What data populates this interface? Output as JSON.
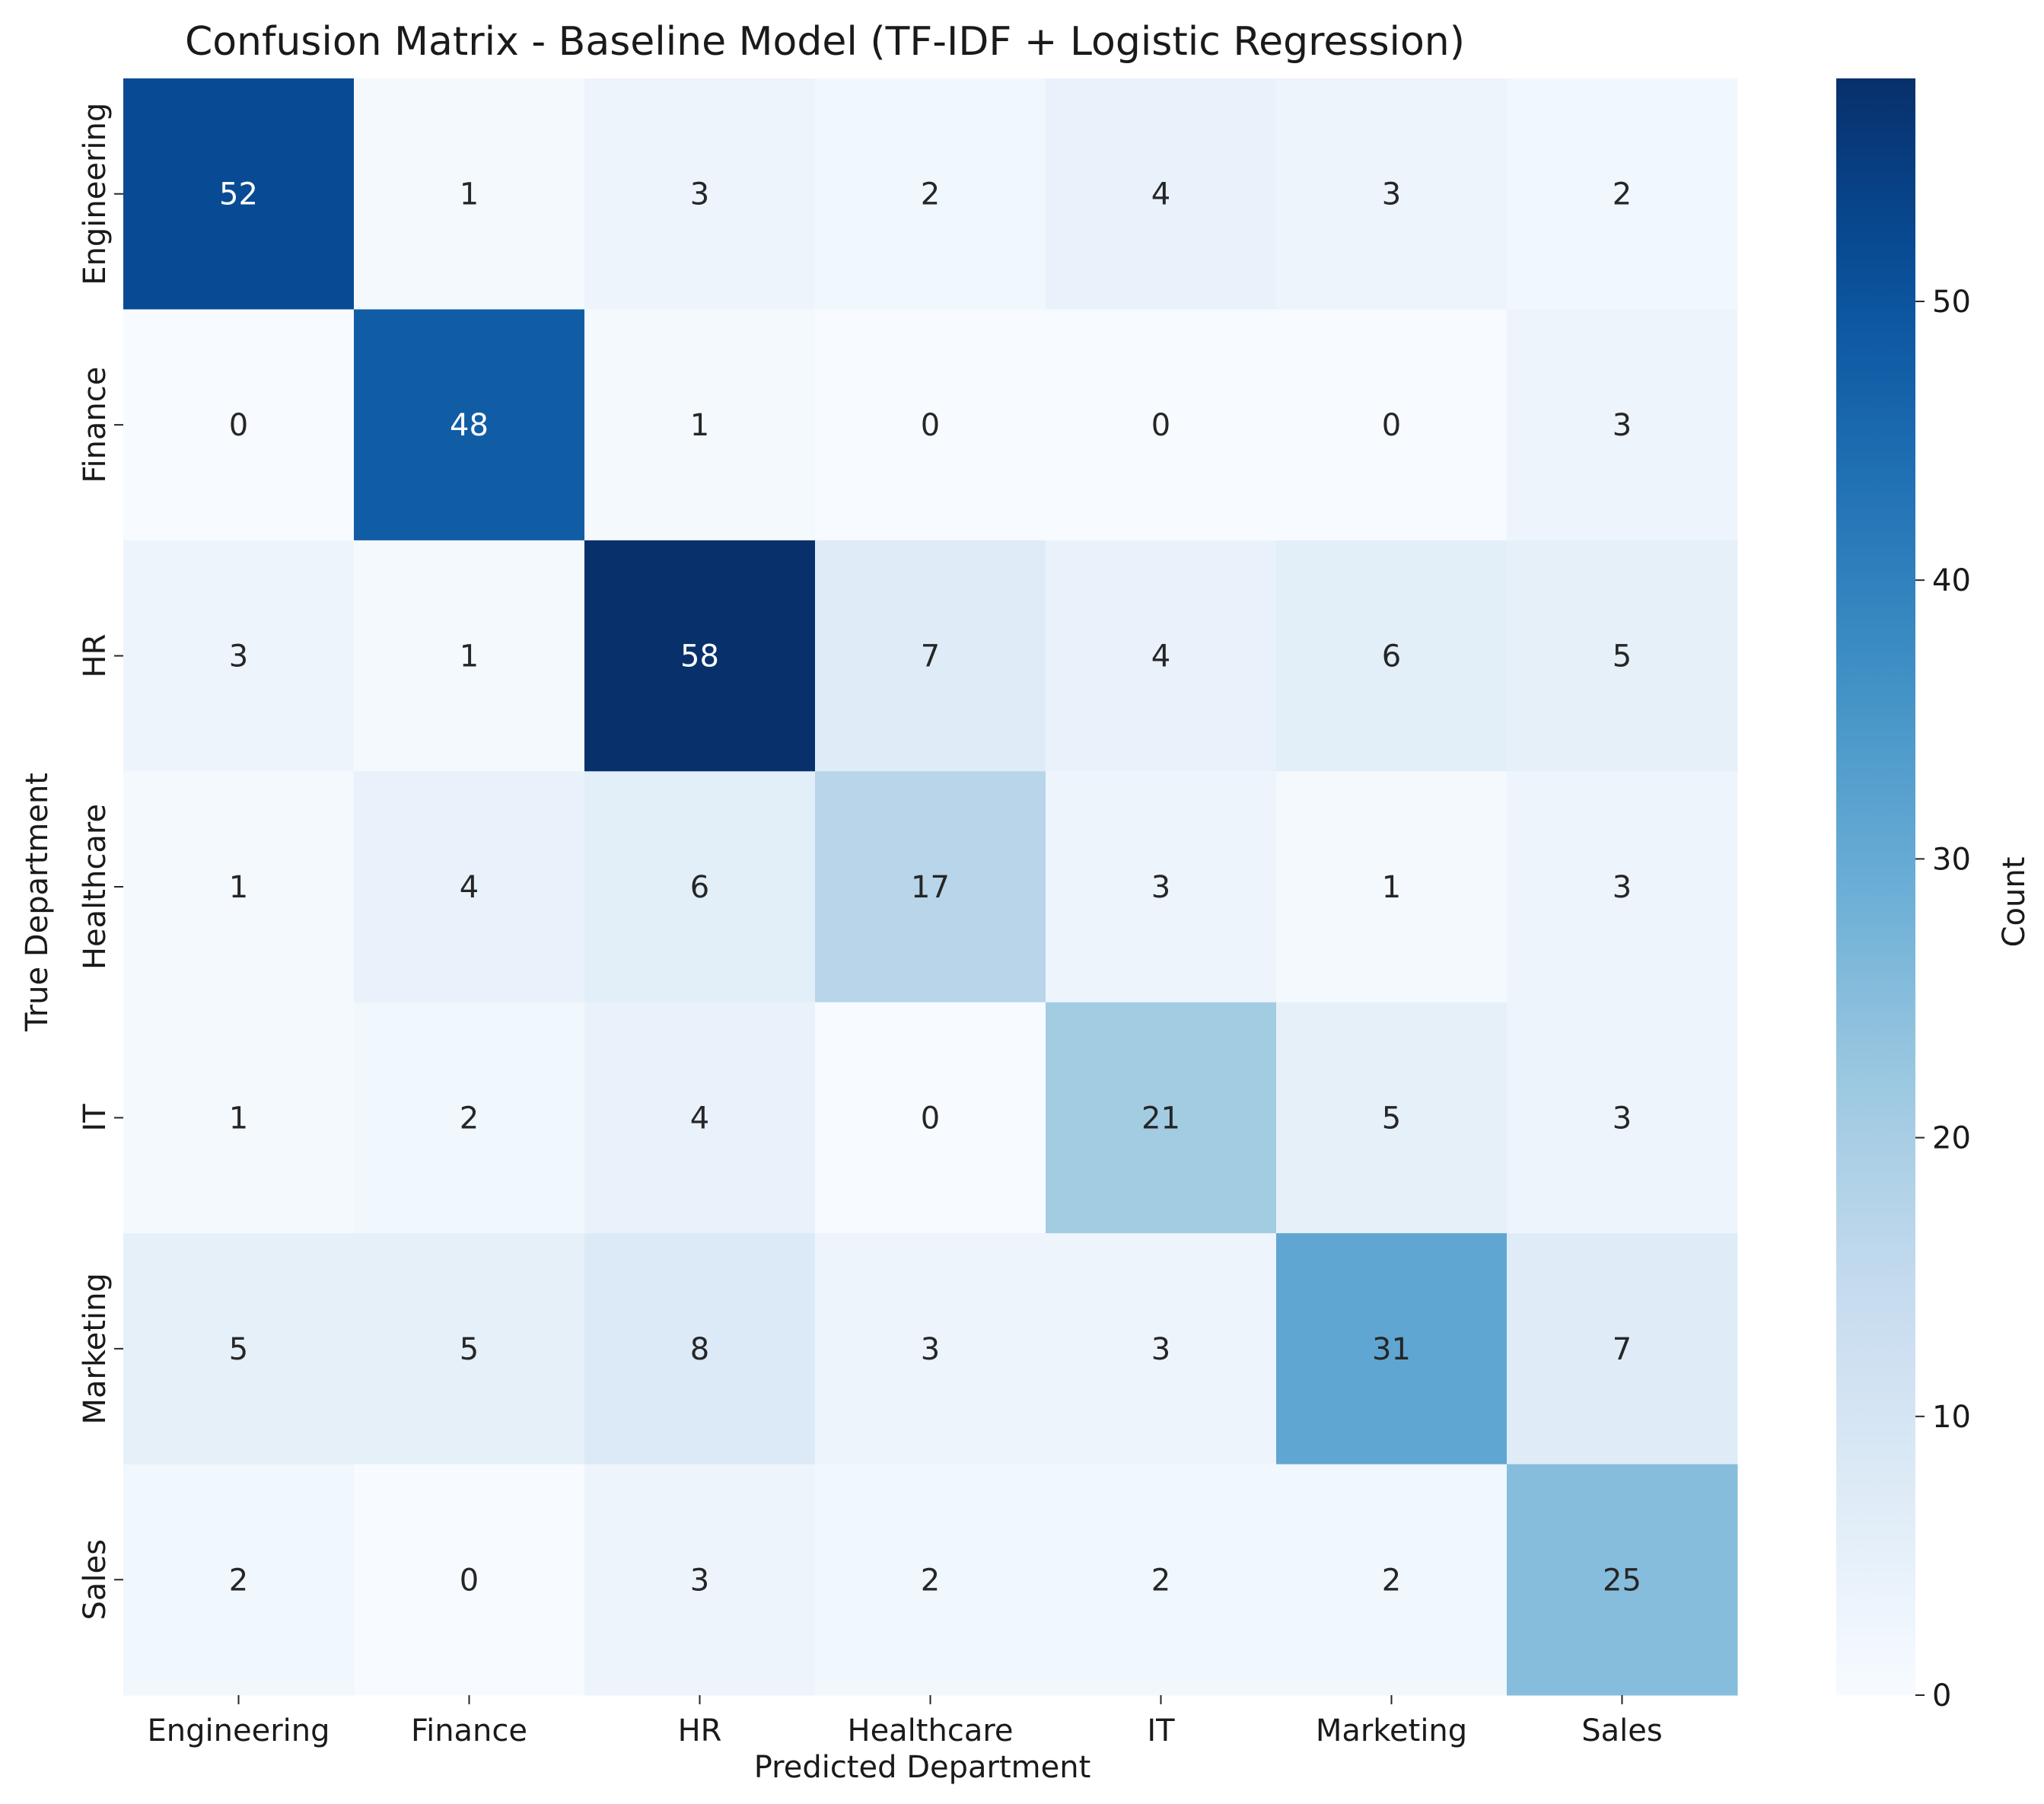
{
  "chart_data": {
    "type": "heatmap",
    "title": "Confusion Matrix - Baseline Model (TF-IDF + Logistic Regression)",
    "xlabel": "Predicted Department",
    "ylabel": "True Department",
    "x_categories": [
      "Engineering",
      "Finance",
      "HR",
      "Healthcare",
      "IT",
      "Marketing",
      "Sales"
    ],
    "y_categories": [
      "Engineering",
      "Finance",
      "HR",
      "Healthcare",
      "IT",
      "Marketing",
      "Sales"
    ],
    "values": [
      [
        52,
        1,
        3,
        2,
        4,
        3,
        2
      ],
      [
        0,
        48,
        1,
        0,
        0,
        0,
        3
      ],
      [
        3,
        1,
        58,
        7,
        4,
        6,
        5
      ],
      [
        1,
        4,
        6,
        17,
        3,
        1,
        3
      ],
      [
        1,
        2,
        4,
        0,
        21,
        5,
        3
      ],
      [
        5,
        5,
        8,
        3,
        3,
        31,
        7
      ],
      [
        2,
        0,
        3,
        2,
        2,
        2,
        25
      ]
    ],
    "colorbar": {
      "label": "Count",
      "vmin": 0,
      "vmax": 58,
      "ticks": [
        0,
        10,
        20,
        30,
        40,
        50
      ],
      "colormap": "Blues"
    }
  }
}
